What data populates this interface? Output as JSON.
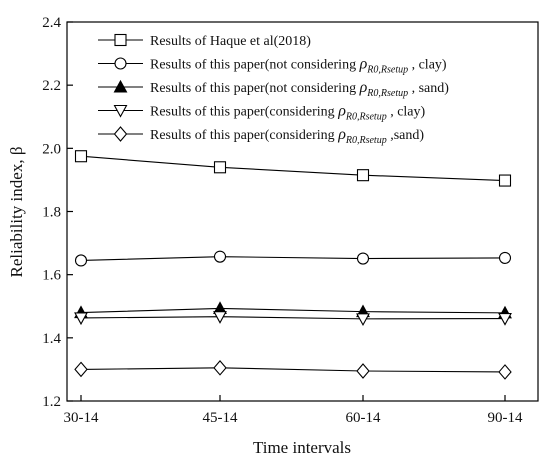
{
  "chart_data": {
    "type": "line",
    "categories": [
      "30-14",
      "45-14",
      "60-14",
      "90-14"
    ],
    "xlabel": "Time intervals",
    "ylabel": "Reliability index, β",
    "ylim": [
      1.2,
      2.4
    ],
    "yticks": [
      "1.2",
      "1.4",
      "1.6",
      "1.8",
      "2.0",
      "2.2",
      "2.4"
    ],
    "grid": false,
    "legend_position": "top-left",
    "series": [
      {
        "name": "Results of Haque et al(2018)",
        "marker": "square-open",
        "values": [
          1.975,
          1.94,
          1.915,
          1.898
        ]
      },
      {
        "name": "Results of this paper(not considering ρR0,Rsetup , clay)",
        "marker": "circle-open",
        "values": [
          1.645,
          1.657,
          1.651,
          1.653
        ]
      },
      {
        "name": "Results of this paper(not considering ρR0,Rsetup , sand)",
        "marker": "triangle-up-filled",
        "values": [
          1.48,
          1.493,
          1.483,
          1.479
        ]
      },
      {
        "name": "Results of this paper(considering ρR0,Rsetup , clay)",
        "marker": "triangle-down-open",
        "values": [
          1.463,
          1.467,
          1.46,
          1.461
        ]
      },
      {
        "name": "Results of this paper(considering ρR0,Rsetup ,sand)",
        "marker": "diamond-open",
        "values": [
          1.3,
          1.305,
          1.295,
          1.292
        ]
      }
    ],
    "legend": [
      {
        "pre": "Results of Haque et al(2018)",
        "sym": "",
        "sub": "",
        "post": ""
      },
      {
        "pre": "Results of this paper(not considering ",
        "sym": "ρ",
        "sub": "R0,Rsetup",
        "post": " , clay)"
      },
      {
        "pre": "Results of this paper(not considering ",
        "sym": "ρ",
        "sub": "R0,Rsetup",
        "post": " , sand)"
      },
      {
        "pre": "Results of this paper(considering ",
        "sym": "ρ",
        "sub": "R0,Rsetup",
        "post": " , clay)"
      },
      {
        "pre": "Results of this paper(considering ",
        "sym": "ρ",
        "sub": "R0,Rsetup",
        "post": " ,sand)"
      }
    ]
  }
}
